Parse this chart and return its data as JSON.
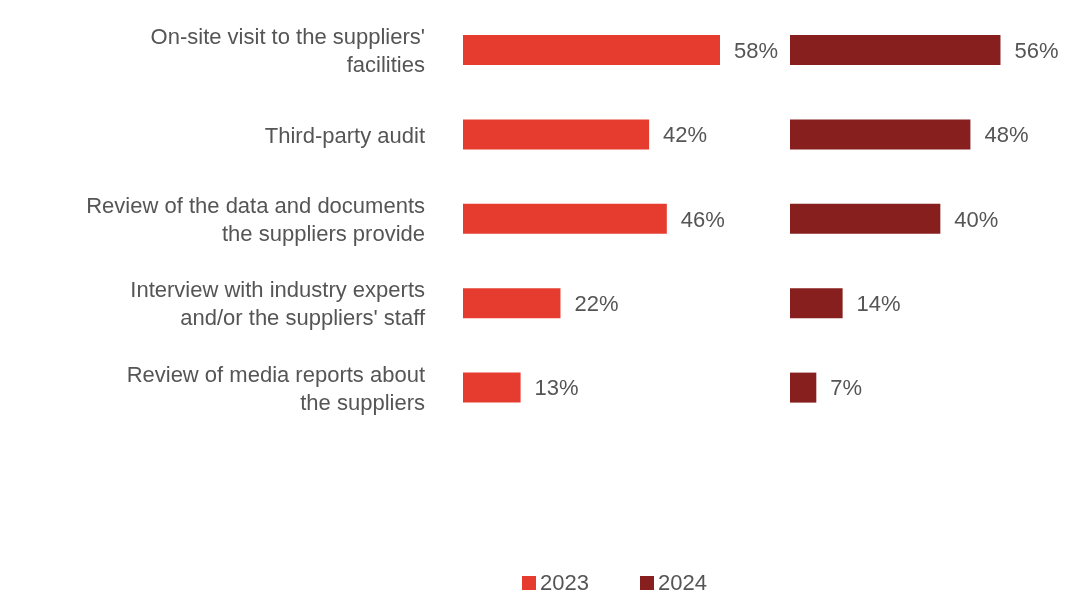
{
  "chart_data": [
    {
      "type": "bar",
      "orientation": "horizontal",
      "legend": "bottom",
      "categories": [
        "On-site visit to the suppliers' facilities",
        "Third-party audit",
        "Review of the data and documents the suppliers provide",
        "Interview with industry experts and/or the suppliers' staff",
        "Review of media reports about the suppliers"
      ],
      "series": [
        {
          "name": "2023",
          "color": "#e63c2f",
          "values": [
            58,
            42,
            46,
            22,
            13
          ],
          "value_labels": [
            "58%",
            "42%",
            "46%",
            "22%",
            "13%"
          ]
        }
      ]
    },
    {
      "type": "bar",
      "orientation": "horizontal",
      "legend": "bottom",
      "categories": [
        null,
        null,
        null,
        null,
        null
      ],
      "series": [
        {
          "name": "2024",
          "color": "#861f1d",
          "values": [
            56,
            48,
            40,
            14,
            7
          ],
          "value_labels": [
            "56%",
            "48%",
            "40%",
            "14%",
            "7%"
          ]
        }
      ]
    }
  ]
}
